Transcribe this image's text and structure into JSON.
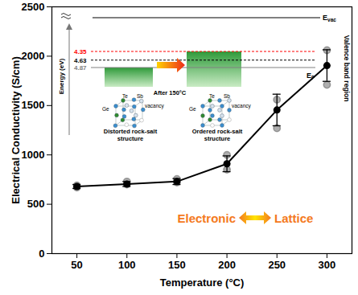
{
  "chart_data": {
    "type": "line",
    "x_label": "Temperature (°C)",
    "y_label": "Electrical Conductivity (S/cm)",
    "x": [
      50,
      100,
      150,
      200,
      250,
      300
    ],
    "xlim": [
      25,
      325
    ],
    "xticks": [
      50,
      100,
      150,
      200,
      250,
      300
    ],
    "ylim": [
      0,
      2500
    ],
    "yticks": [
      0,
      500,
      1000,
      1500,
      2000,
      2500
    ],
    "grid": false,
    "series": [
      {
        "color": "#000000",
        "marker": "circle",
        "line_style": "solid",
        "values": [
          680,
          705,
          730,
          910,
          1455,
          1905
        ],
        "error": [
          20,
          25,
          30,
          80,
          160,
          160
        ],
        "measurements": [
          [
            670,
            690
          ],
          [
            700,
            730
          ],
          [
            720,
            755
          ],
          [
            850,
            1000
          ],
          [
            1270,
            1560
          ],
          [
            1710,
            2060
          ]
        ]
      }
    ],
    "annotations": {
      "left": "Electronic",
      "right": "Lattice",
      "color": "#f47920"
    },
    "inset": {
      "evac": {
        "main": "E",
        "sub": "vac"
      },
      "ef": {
        "main": "E",
        "sub": "F"
      },
      "energy_axis": "Energy (eV)",
      "side_label": "Valence band region",
      "levels": [
        {
          "value": 4.35,
          "color": "#ff0000"
        },
        {
          "value": 4.63,
          "color": "#000000"
        },
        {
          "value": 4.87,
          "color": "#808080"
        }
      ],
      "arrow_label": "After 150°C",
      "atom_labels": [
        "Ge",
        "Te",
        "Sb",
        "vacancy"
      ],
      "structures": [
        {
          "caption": "Distorted rock-salt structure",
          "band_top": 4.87
        },
        {
          "caption": "Ordered rock-salt structure",
          "band_top": 4.35
        }
      ]
    }
  }
}
